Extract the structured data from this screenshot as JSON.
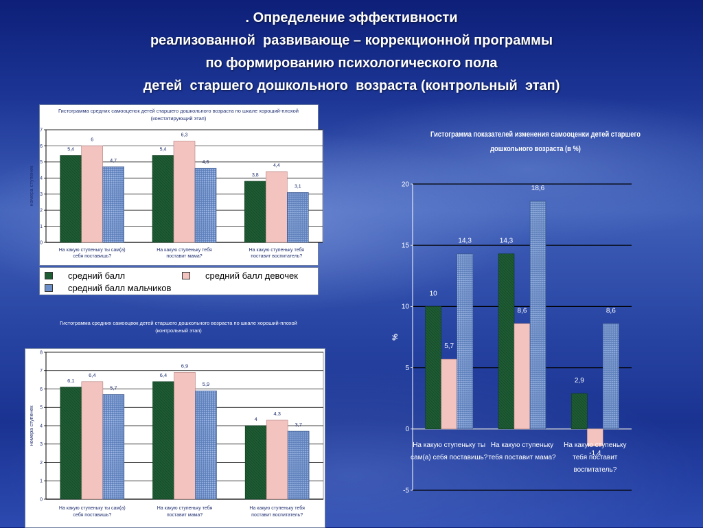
{
  "slide": {
    "title_lines": [
      ". Определение эффективности",
      "реализованной  развивающе – коррекционной программы",
      "по формированию психологического пола",
      "детей  старшего дошкольного  возраста (контрольный  этап)"
    ]
  },
  "colors": {
    "series": [
      "#1e5c34",
      "#f3c3c0",
      "#6c8ec9"
    ],
    "series_dark": [
      "#0f3a1e",
      "#b07f7c",
      "#38558a"
    ]
  },
  "legend": {
    "items": [
      "средний балл",
      "средний балл девочек",
      "средний балл мальчиков"
    ]
  },
  "chart_data": [
    {
      "type": "bar",
      "title": "Гистограмма средних самооценок детей старшего дошкольного возраста по шкале хороший-плохой (констатирующий этап)",
      "ylabel": "номера ступенек",
      "xlabel": "",
      "ylim": [
        0,
        7
      ],
      "yticks": [
        0,
        1,
        2,
        3,
        4,
        5,
        6,
        7
      ],
      "categories": [
        "На какую ступеньку ты сам(а) себя поставишь?",
        "На какую ступеньку тебя поставит мама?",
        "На какую ступеньку тебя поставит воспитатель?"
      ],
      "series": [
        {
          "name": "средний балл",
          "values": [
            5.4,
            5.4,
            3.8
          ],
          "labels": [
            "5,4",
            "5,4",
            "3,8"
          ]
        },
        {
          "name": "средний балл девочек",
          "values": [
            6,
            6.3,
            4.4
          ],
          "labels": [
            "6",
            "6,3",
            "4,4"
          ]
        },
        {
          "name": "средний балл мальчиков",
          "values": [
            4.7,
            4.6,
            3.1
          ],
          "labels": [
            "4,7",
            "4,6",
            "3,1"
          ]
        }
      ],
      "grid": true,
      "legend": "bottom"
    },
    {
      "type": "bar",
      "title": "Гистограмма средних самооцвок детей старшего дошкольного возраста по шкале хороший-плохой (контрольный этап)",
      "ylabel": "номера ступенек",
      "xlabel": "",
      "ylim": [
        0,
        8
      ],
      "yticks": [
        0,
        1,
        2,
        3,
        4,
        5,
        6,
        7,
        8
      ],
      "categories": [
        "На какую ступеньку ты сам(а) себя поставишь?",
        "На какую ступеньку тебя поставит мама?",
        "На какую ступеньку тебя поставит воспитатель?"
      ],
      "series": [
        {
          "values": [
            6.1,
            6.4,
            4
          ],
          "labels": [
            "6,1",
            "6,4",
            "4"
          ]
        },
        {
          "values": [
            6.4,
            6.9,
            4.3
          ],
          "labels": [
            "6,4",
            "6,9",
            "4,3"
          ]
        },
        {
          "values": [
            5.7,
            5.9,
            3.7
          ],
          "labels": [
            "5,7",
            "5,9",
            "3,7"
          ]
        }
      ],
      "grid": true,
      "legend": "none"
    },
    {
      "type": "bar",
      "title": "Гистограмма показателей изменения самооценки детей старшего дошкольного возраста (в %)",
      "ylabel": "%",
      "xlabel": "",
      "ylim": [
        -5,
        20
      ],
      "yticks": [
        -5,
        0,
        5,
        10,
        15,
        20
      ],
      "categories": [
        "На какую ступеньку ты сам(а) себя поставишь?",
        "На какую ступеньку тебя поставит мама?",
        "На какую ступеньку тебя поставит воспитатель?"
      ],
      "series": [
        {
          "values": [
            10,
            14.3,
            2.9
          ],
          "labels": [
            "10",
            "14,3",
            "2,9"
          ]
        },
        {
          "values": [
            5.7,
            8.6,
            -1.4
          ],
          "labels": [
            "5,7",
            "8,6",
            "-1,4"
          ]
        },
        {
          "values": [
            14.3,
            18.6,
            8.6
          ],
          "labels": [
            "14,3",
            "18,6",
            "8,6"
          ]
        }
      ],
      "grid": true,
      "legend": "none"
    }
  ]
}
